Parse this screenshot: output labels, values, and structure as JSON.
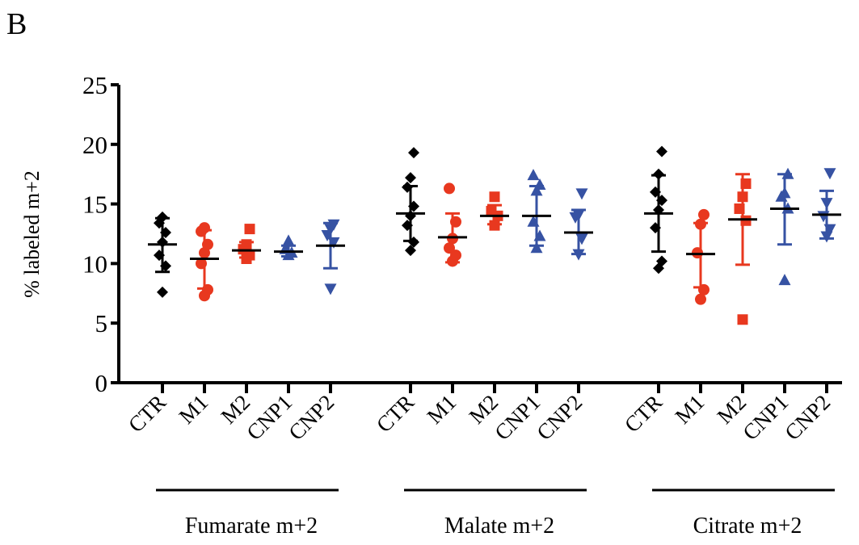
{
  "panel_label": "B",
  "chart_data": {
    "type": "scatter",
    "subtype": "dot-plot-with-mean-and-sd",
    "ylabel": "% labeled m+2",
    "ylim": [
      0,
      25
    ],
    "yticks": [
      0,
      5,
      10,
      15,
      20,
      25
    ],
    "grid": false,
    "colors": {
      "CTR": "#000000",
      "M1": "#e8381f",
      "M2": "#e8381f",
      "CNP1": "#3652a3",
      "CNP2": "#3652a3"
    },
    "markers": {
      "CTR": "diamond",
      "M1": "circle",
      "M2": "square",
      "CNP1": "triangle-up",
      "CNP2": "triangle-down"
    },
    "groups": [
      {
        "label": "Fumarate m+2",
        "series": [
          {
            "name": "CTR",
            "mean": 11.6,
            "sd_low": 9.3,
            "sd_high": 13.8,
            "points": [
              7.6,
              9.8,
              10.7,
              11.8,
              12.6,
              13.4,
              13.9
            ]
          },
          {
            "name": "M1",
            "mean": 10.4,
            "sd_low": 7.9,
            "sd_high": 12.8,
            "points": [
              7.3,
              7.8,
              10.0,
              10.9,
              11.6,
              12.7,
              13.0
            ]
          },
          {
            "name": "M2",
            "mean": 11.1,
            "sd_low": 10.5,
            "sd_high": 11.8,
            "points": [
              10.4,
              10.7,
              11.2,
              11.6,
              12.9
            ]
          },
          {
            "name": "CNP1",
            "mean": 11.0,
            "sd_low": 10.6,
            "sd_high": 11.5,
            "points": [
              10.7,
              10.9,
              11.2,
              11.9
            ]
          },
          {
            "name": "CNP2",
            "mean": 11.5,
            "sd_low": 9.6,
            "sd_high": 13.4,
            "points": [
              7.9,
              11.8,
              12.4,
              12.9,
              13.3
            ]
          }
        ]
      },
      {
        "label": "Malate m+2",
        "series": [
          {
            "name": "CTR",
            "mean": 14.2,
            "sd_low": 11.9,
            "sd_high": 16.5,
            "points": [
              11.1,
              11.8,
              13.2,
              14.0,
              14.8,
              16.4,
              17.2,
              19.3
            ]
          },
          {
            "name": "M1",
            "mean": 12.2,
            "sd_low": 10.1,
            "sd_high": 14.2,
            "points": [
              10.2,
              10.7,
              11.3,
              12.1,
              13.5,
              16.3
            ]
          },
          {
            "name": "M2",
            "mean": 14.0,
            "sd_low": 13.3,
            "sd_high": 14.9,
            "points": [
              13.2,
              14.0,
              14.4,
              15.6
            ]
          },
          {
            "name": "CNP1",
            "mean": 14.0,
            "sd_low": 11.5,
            "sd_high": 16.5,
            "points": [
              11.3,
              12.3,
              13.5,
              16.1,
              16.6,
              17.4
            ]
          },
          {
            "name": "CNP2",
            "mean": 12.6,
            "sd_low": 10.8,
            "sd_high": 14.5,
            "points": [
              10.8,
              12.1,
              13.9,
              14.1,
              15.9
            ]
          }
        ]
      },
      {
        "label": "Citrate m+2",
        "series": [
          {
            "name": "CTR",
            "mean": 14.2,
            "sd_low": 11.0,
            "sd_high": 17.4,
            "points": [
              9.6,
              10.2,
              13.0,
              14.5,
              15.3,
              16.0,
              17.5,
              19.4
            ]
          },
          {
            "name": "M1",
            "mean": 10.8,
            "sd_low": 8.0,
            "sd_high": 13.4,
            "points": [
              7.0,
              7.8,
              10.9,
              13.3,
              14.1
            ]
          },
          {
            "name": "M2",
            "mean": 13.7,
            "sd_low": 9.9,
            "sd_high": 17.5,
            "points": [
              5.3,
              13.6,
              14.6,
              15.6,
              16.7
            ]
          },
          {
            "name": "CNP1",
            "mean": 14.6,
            "sd_low": 11.6,
            "sd_high": 17.5,
            "points": [
              8.6,
              14.6,
              15.6,
              15.9,
              17.5
            ]
          },
          {
            "name": "CNP2",
            "mean": 14.1,
            "sd_low": 12.1,
            "sd_high": 16.1,
            "points": [
              12.3,
              12.9,
              14.0,
              15.1,
              17.6
            ]
          }
        ]
      }
    ]
  }
}
